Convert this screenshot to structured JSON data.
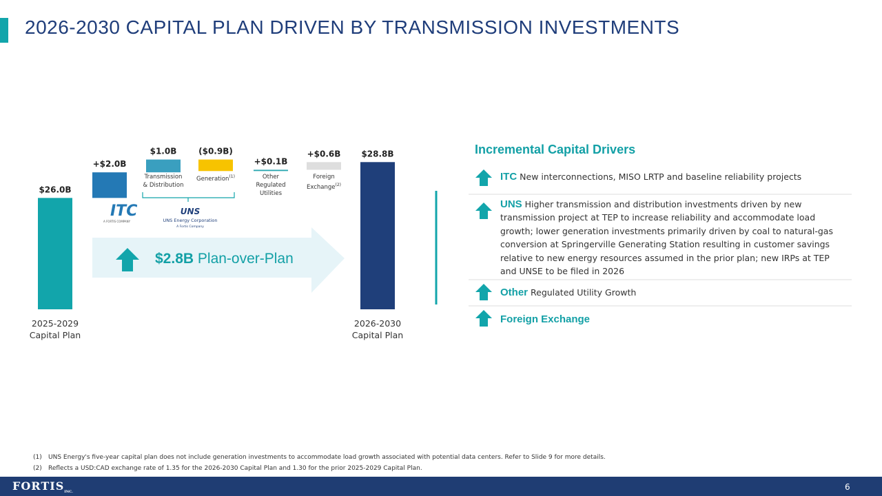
{
  "title": "2026-2030 CAPITAL PLAN DRIVEN BY TRANSMISSION INVESTMENTS",
  "chart_data": {
    "type": "waterfall",
    "categories": [
      "2025-2029\nCapital Plan",
      null,
      "Transmission\n& Distribution",
      "Generation",
      "Other\nRegulated\nUtilities",
      "Foreign\nExchange",
      "2026-2030\nCapital Plan"
    ],
    "category_notes": [
      null,
      null,
      null,
      "(1)",
      null,
      "(2)",
      null
    ],
    "values": [
      26.0,
      2.0,
      1.0,
      -0.9,
      0.1,
      0.6,
      28.8
    ],
    "value_labels": [
      "$26.0B",
      "+$2.0B",
      "$1.0B",
      "($0.9B)",
      "+$0.1B",
      "+$0.6B",
      "$28.8B"
    ],
    "measure": [
      "total",
      "relative",
      "relative",
      "relative",
      "relative",
      "relative",
      "total"
    ],
    "colors": [
      "#12a5ab",
      "#2479b5",
      "#3a9fbf",
      "#f7c300",
      "#2aa7b0",
      "#dedede",
      "#1f3f7a"
    ],
    "ylim": [
      17.3,
      30
    ],
    "annotation": {
      "amount": "$2.8B",
      "text": "Plan-over-Plan"
    }
  },
  "logos": {
    "itc": {
      "name": "ITC",
      "tagline": "A FORTIS COMPANY"
    },
    "uns": {
      "name": "UNS",
      "full_name": "UNS Energy Corporation",
      "tagline": "A Fortis Company"
    }
  },
  "drivers": {
    "title": "Incremental Capital Drivers",
    "items": [
      {
        "head": "ITC",
        "text": "New interconnections, MISO LRTP and baseline reliability projects"
      },
      {
        "head": "UNS",
        "text": "Higher transmission and distribution investments driven by new transmission project at TEP to increase reliability and accommodate load growth; lower generation investments primarily driven by coal to natural-gas conversion at Springerville Generating Station resulting in customer savings relative to new energy resources assumed in the prior plan; new IRPs at TEP and UNSE to be filed in 2026"
      },
      {
        "head": "Other",
        "text": "Regulated Utility Growth"
      },
      {
        "head": "Foreign Exchange",
        "text": null
      }
    ]
  },
  "footnotes": [
    {
      "marker": "(1)",
      "text": "UNS Energy's five-year capital plan does not include generation investments to accommodate load growth associated with potential data centers. Refer to Slide 9 for more details."
    },
    {
      "marker": "(2)",
      "text": "Reflects a USD:CAD exchange rate of 1.35 for the 2026-2030 Capital Plan and 1.30 for the prior 2025-2029 Capital Plan."
    }
  ],
  "footer": {
    "brand": "FORTIS",
    "brand_suffix": "INC.",
    "page": "6"
  }
}
